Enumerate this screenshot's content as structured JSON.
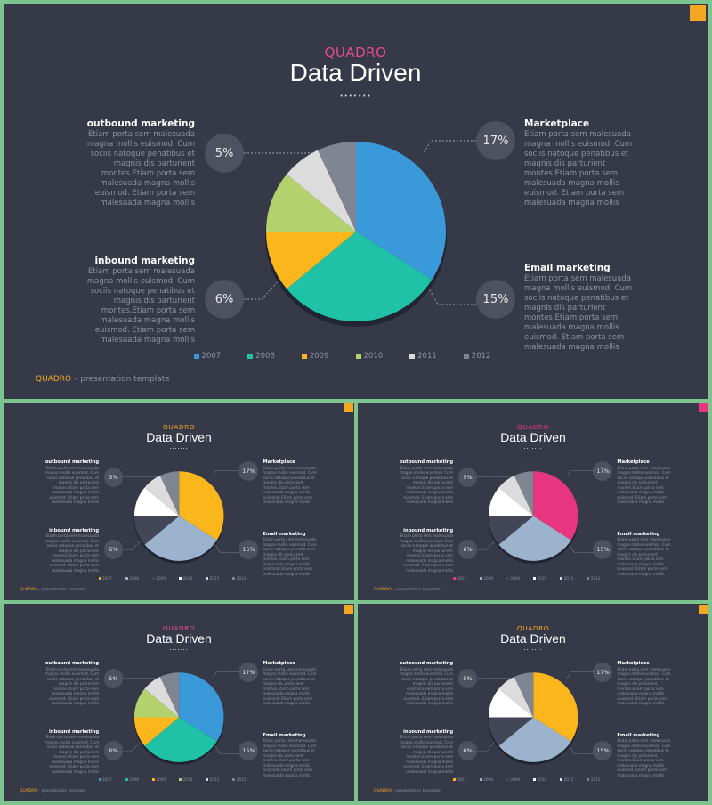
{
  "slides": [
    {
      "brand": "QUADRO",
      "title": "Data Driven",
      "dots": "•••••••",
      "colors": {
        "brand": "#e84b8a",
        "corner": "#f5a623"
      },
      "blocks": {
        "outbound": {
          "title": "outbound marketing",
          "body": "Etiam porta sem malesuada magna mollis euismod. Cum sociis natoque penatibus et magnis dis parturient montes.Etiam porta sem malesuada magna mollis euismod. Etiam porta sem malesuada magna mollis"
        },
        "inbound": {
          "title": "inbound marketing",
          "body": "Etiam porta sem malesuada magna mollis euismod. Cum sociis natoque penatibus et magnis dis parturient montes.Etiam porta sem malesuada magna mollis euismod. Etiam porta sem malesuada magna mollis"
        },
        "marketplace": {
          "title": "Marketplace",
          "body": "Etiam porta sem malesuada magna mollis euismod. Cum sociis natoque penatibus et magnis dis parturient montes.Etiam porta sem malesuada magna mollis euismod. Etiam porta sem malesuada magna mollis"
        },
        "email": {
          "title": "Email marketing",
          "body": "Etiam porta sem malesuada magna mollis euismod. Cum sociis natoque penatibus et magnis dis parturient montes.Etiam porta sem malesuada magna mollis euismod. Etiam porta sem malesuada magna mollis"
        }
      },
      "percents": {
        "outbound": "5%",
        "inbound": "6%",
        "marketplace": "17%",
        "email": "15%"
      },
      "footer": {
        "brand": "QUADRO",
        "sep": " – ",
        "text": "presentation template"
      }
    },
    {
      "brand": "QUADRO",
      "title": "Data Driven",
      "dots": "•••••••",
      "colors": {
        "brand": "#f5a623",
        "corner": "#f5a623"
      },
      "blocks": {
        "outbound": {
          "title": "outbound marketing",
          "body": "Etiam porta sem malesuada magna mollis euismod. Cum sociis natoque penatibus et magnis dis parturient montes.Etiam porta sem malesuada magna mollis euismod. Etiam porta sem malesuada magna mollis"
        },
        "inbound": {
          "title": "inbound marketing",
          "body": "Etiam porta sem malesuada magna mollis euismod. Cum sociis natoque penatibus et magnis dis parturient montes.Etiam porta sem malesuada magna mollis euismod. Etiam porta sem malesuada magna mollis"
        },
        "marketplace": {
          "title": "Marketplace",
          "body": "Etiam porta sem malesuada magna mollis euismod. Cum sociis natoque penatibus et magnis dis parturient montes.Etiam porta sem malesuada magna mollis euismod. Etiam porta sem malesuada magna mollis"
        },
        "email": {
          "title": "Email marketing",
          "body": "Etiam porta sem malesuada magna mollis euismod. Cum sociis natoque penatibus et magnis dis parturient montes.Etiam porta sem malesuada magna mollis euismod. Etiam porta sem malesuada magna mollis"
        }
      },
      "percents": {
        "outbound": "5%",
        "inbound": "6%",
        "marketplace": "17%",
        "email": "15%"
      },
      "footer": {
        "brand": "QUADRO",
        "sep": " – ",
        "text": "presentation template"
      }
    },
    {
      "brand": "QUADRO",
      "title": "Data Driven",
      "dots": "•••••••",
      "colors": {
        "brand": "#e8357f",
        "corner": "#e8357f"
      },
      "blocks": {
        "outbound": {
          "title": "outbound marketing",
          "body": "Etiam porta sem malesuada magna mollis euismod. Cum sociis natoque penatibus et magnis dis parturient montes.Etiam porta sem malesuada magna mollis euismod. Etiam porta sem malesuada magna mollis"
        },
        "inbound": {
          "title": "inbound marketing",
          "body": "Etiam porta sem malesuada magna mollis euismod. Cum sociis natoque penatibus et magnis dis parturient montes.Etiam porta sem malesuada magna mollis euismod. Etiam porta sem malesuada magna mollis"
        },
        "marketplace": {
          "title": "Marketplace",
          "body": "Etiam porta sem malesuada magna mollis euismod. Cum sociis natoque penatibus et magnis dis parturient montes.Etiam porta sem malesuada magna mollis euismod. Etiam porta sem malesuada magna mollis"
        },
        "email": {
          "title": "Email marketing",
          "body": "Etiam porta sem malesuada magna mollis euismod. Cum sociis natoque penatibus et magnis dis parturient montes.Etiam porta sem malesuada magna mollis euismod. Etiam porta sem malesuada magna mollis"
        }
      },
      "percents": {
        "outbound": "5%",
        "inbound": "6%",
        "marketplace": "17%",
        "email": "15%"
      },
      "footer": {
        "brand": "QUADRO",
        "sep": " – ",
        "text": "presentation template"
      }
    },
    {
      "brand": "QUADRO",
      "title": "Data Driven",
      "dots": "•••••••",
      "colors": {
        "brand": "#e84b8a",
        "corner": "#f5a623"
      },
      "blocks": {
        "outbound": {
          "title": "outbound marketing",
          "body": "Etiam porta sem malesuada magna mollis euismod. Cum sociis natoque penatibus et magnis dis parturient montes.Etiam porta sem malesuada magna mollis euismod. Etiam porta sem malesuada magna mollis"
        },
        "inbound": {
          "title": "inbound marketing",
          "body": "Etiam porta sem malesuada magna mollis euismod. Cum sociis natoque penatibus et magnis dis parturient montes.Etiam porta sem malesuada magna mollis euismod. Etiam porta sem malesuada magna mollis"
        },
        "marketplace": {
          "title": "Marketplace",
          "body": "Etiam porta sem malesuada magna mollis euismod. Cum sociis natoque penatibus et magnis dis parturient montes.Etiam porta sem malesuada magna mollis euismod. Etiam porta sem malesuada magna mollis"
        },
        "email": {
          "title": "Email marketing",
          "body": "Etiam porta sem malesuada magna mollis euismod. Cum sociis natoque penatibus et magnis dis parturient montes.Etiam porta sem malesuada magna mollis euismod. Etiam porta sem malesuada magna mollis"
        }
      },
      "percents": {
        "outbound": "5%",
        "inbound": "6%",
        "marketplace": "17%",
        "email": "15%"
      },
      "footer": {
        "brand": "QUADRO",
        "sep": " – ",
        "text": "presentation template"
      }
    },
    {
      "brand": "QUADRO",
      "title": "Data Driven",
      "dots": "•••••••",
      "colors": {
        "brand": "#f5a623",
        "corner": "#f5a623"
      },
      "blocks": {
        "outbound": {
          "title": "outbound marketing",
          "body": "Etiam porta sem malesuada magna mollis euismod. Cum sociis natoque penatibus et magnis dis parturient montes.Etiam porta sem malesuada magna mollis euismod. Etiam porta sem malesuada magna mollis"
        },
        "inbound": {
          "title": "inbound marketing",
          "body": "Etiam porta sem malesuada magna mollis euismod. Cum sociis natoque penatibus et magnis dis parturient montes.Etiam porta sem malesuada magna mollis euismod. Etiam porta sem malesuada magna mollis"
        },
        "marketplace": {
          "title": "Marketplace",
          "body": "Etiam porta sem malesuada magna mollis euismod. Cum sociis natoque penatibus et magnis dis parturient montes.Etiam porta sem malesuada magna mollis euismod. Etiam porta sem malesuada magna mollis"
        },
        "email": {
          "title": "Email marketing",
          "body": "Etiam porta sem malesuada magna mollis euismod. Cum sociis natoque penatibus et magnis dis parturient montes.Etiam porta sem malesuada magna mollis euismod. Etiam porta sem malesuada magna mollis"
        }
      },
      "percents": {
        "outbound": "5%",
        "inbound": "6%",
        "marketplace": "17%",
        "email": "15%"
      },
      "footer": {
        "brand": "QUADRO",
        "sep": " – ",
        "text": "presentation template"
      }
    }
  ],
  "chart_data": [
    {
      "type": "pie",
      "categories": [
        "2007",
        "2008",
        "2009",
        "2010",
        "2011",
        "2012"
      ],
      "values": [
        34,
        30,
        11,
        11,
        7,
        7
      ],
      "colors": [
        "#3a9ad9",
        "#1fc2a7",
        "#fbb61b",
        "#b3d26e",
        "#dcdcdc",
        "#7f8591"
      ],
      "legend": "bottom"
    },
    {
      "type": "pie",
      "categories": [
        "2007",
        "2008",
        "2009",
        "2010",
        "2011",
        "2012"
      ],
      "values": [
        34,
        30,
        11,
        11,
        7,
        7
      ],
      "colors": [
        "#fbb61b",
        "#9bb3cc",
        "#434656",
        "#ffffff",
        "#dcdcdc",
        "#7f8591"
      ],
      "legend": "bottom"
    },
    {
      "type": "pie",
      "categories": [
        "2007",
        "2008",
        "2009",
        "2010",
        "2011",
        "2012"
      ],
      "values": [
        34,
        30,
        11,
        11,
        7,
        7
      ],
      "colors": [
        "#e8357f",
        "#9bb3cc",
        "#434656",
        "#ffffff",
        "#dcdcdc",
        "#7f8591"
      ],
      "legend": "bottom"
    },
    {
      "type": "pie",
      "categories": [
        "2007",
        "2008",
        "2009",
        "2010",
        "2011",
        "2012"
      ],
      "values": [
        34,
        30,
        11,
        11,
        7,
        7
      ],
      "colors": [
        "#3a9ad9",
        "#1fc2a7",
        "#fbb61b",
        "#b3d26e",
        "#dcdcdc",
        "#7f8591"
      ],
      "legend": "bottom"
    },
    {
      "type": "pie",
      "categories": [
        "2007",
        "2008",
        "2009",
        "2010",
        "2011",
        "2012"
      ],
      "values": [
        34,
        30,
        11,
        11,
        7,
        7
      ],
      "colors": [
        "#fbb61b",
        "#9bb3cc",
        "#434656",
        "#ffffff",
        "#dcdcdc",
        "#7f8591"
      ],
      "legend": "bottom"
    }
  ]
}
